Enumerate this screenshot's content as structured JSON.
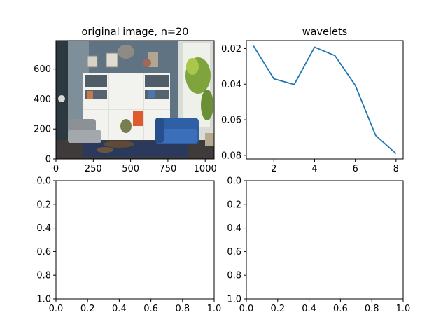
{
  "chart_data": [
    {
      "type": "image",
      "title": "original image, n=20",
      "image_subject": "living room interior: white shelving wall unit, blue armchair, grey sofa, plants by window",
      "xlim": [
        0,
        1060
      ],
      "ylim": [
        790,
        0
      ],
      "xticks": [
        0,
        250,
        500,
        750,
        1000
      ],
      "xtick_labels": [
        "0",
        "250",
        "500",
        "750",
        "1000"
      ],
      "yticks": [
        0,
        200,
        400,
        600
      ],
      "ytick_labels": [
        "0",
        "200",
        "400",
        "600"
      ]
    },
    {
      "type": "line",
      "title": "wavelets",
      "x": [
        1,
        2,
        3,
        4,
        5,
        6,
        7,
        8
      ],
      "y": [
        0.0185,
        0.037,
        0.0402,
        0.0192,
        0.024,
        0.0407,
        0.0688,
        0.079
      ],
      "line_color": "#1f77b4",
      "xlim": [
        0.65,
        8.35
      ],
      "ylim": [
        0.0155,
        0.082
      ],
      "xticks": [
        2,
        4,
        6,
        8
      ],
      "xtick_labels": [
        "2",
        "4",
        "6",
        "8"
      ],
      "yticks": [
        0.02,
        0.04,
        0.06,
        0.08
      ],
      "ytick_labels": [
        "0.02",
        "0.04",
        "0.06",
        "0.08"
      ]
    },
    {
      "type": "line",
      "title": "",
      "x": [],
      "y": [],
      "xlim": [
        0,
        1
      ],
      "ylim": [
        0,
        1
      ],
      "xticks": [
        0,
        0.2,
        0.4,
        0.6,
        0.8,
        1.0
      ],
      "xtick_labels": [
        "0.0",
        "0.2",
        "0.4",
        "0.6",
        "0.8",
        "1.0"
      ],
      "yticks": [
        0,
        0.2,
        0.4,
        0.6,
        0.8,
        1.0
      ],
      "ytick_labels": [
        "0.0",
        "0.2",
        "0.4",
        "0.6",
        "0.8",
        "1.0"
      ]
    },
    {
      "type": "line",
      "title": "",
      "x": [],
      "y": [],
      "xlim": [
        0,
        1
      ],
      "ylim": [
        0,
        1
      ],
      "xticks": [
        0,
        0.2,
        0.4,
        0.6,
        0.8,
        1.0
      ],
      "xtick_labels": [
        "0.0",
        "0.2",
        "0.4",
        "0.6",
        "0.8",
        "1.0"
      ],
      "yticks": [
        0,
        0.2,
        0.4,
        0.6,
        0.8,
        1.0
      ],
      "ytick_labels": [
        "0.0",
        "0.2",
        "0.4",
        "0.6",
        "0.8",
        "1.0"
      ]
    }
  ]
}
